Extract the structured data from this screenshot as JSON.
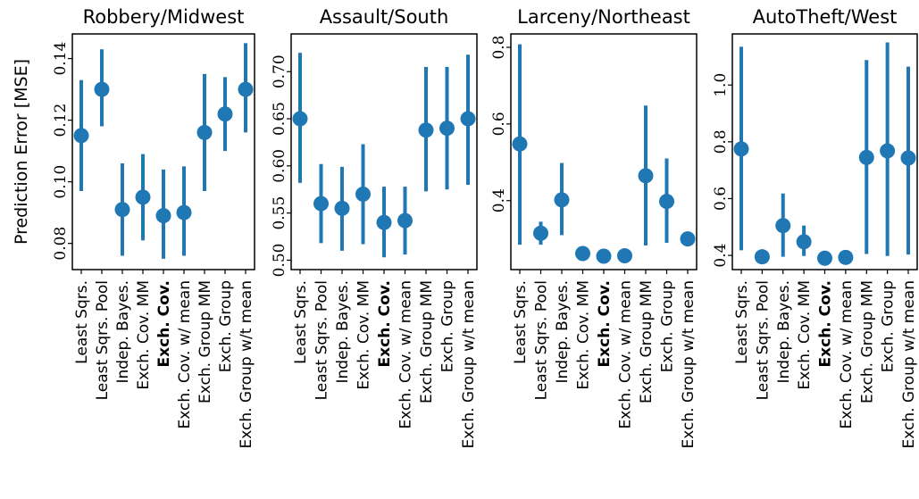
{
  "ylabel": "Prediction Error [MSE]",
  "colors": {
    "series": "#1f77b4"
  },
  "bold_category": "Exch. Cov.",
  "chart_data": [
    {
      "type": "scatter",
      "title": "Robbery/Midwest",
      "categories": [
        "Least Sqrs.",
        "Least Sqrs. Pool",
        "Indep. Bayes.",
        "Exch. Cov. MM",
        "Exch. Cov.",
        "Exch. Cov. w/ mean",
        "Exch. Group MM",
        "Exch. Group",
        "Exch. Group w/t mean"
      ],
      "values": [
        0.115,
        0.13,
        0.091,
        0.095,
        0.089,
        0.09,
        0.116,
        0.122,
        0.13
      ],
      "lower": [
        0.097,
        0.118,
        0.076,
        0.081,
        0.075,
        0.076,
        0.097,
        0.11,
        0.116
      ],
      "upper": [
        0.133,
        0.143,
        0.106,
        0.109,
        0.104,
        0.105,
        0.135,
        0.134,
        0.145
      ],
      "ylim": [
        0.0715,
        0.148
      ],
      "yticks": [
        0.08,
        0.1,
        0.12,
        0.14
      ],
      "ytick_labels": [
        "0.08",
        "0.10",
        "0.12",
        "0.14"
      ],
      "grid": false
    },
    {
      "type": "scatter",
      "title": "Assault/South",
      "categories": [
        "Least Sqrs.",
        "Least Sqrs. Pool",
        "Indep. Bayes.",
        "Exch. Cov. MM",
        "Exch. Cov.",
        "Exch. Cov. w/ mean",
        "Exch. Group MM",
        "Exch. Group",
        "Exch. Group w/t mean"
      ],
      "values": [
        0.65,
        0.56,
        0.555,
        0.57,
        0.54,
        0.542,
        0.638,
        0.64,
        0.65
      ],
      "lower": [
        0.582,
        0.518,
        0.51,
        0.517,
        0.503,
        0.506,
        0.573,
        0.575,
        0.58
      ],
      "upper": [
        0.72,
        0.602,
        0.599,
        0.623,
        0.578,
        0.578,
        0.705,
        0.705,
        0.718
      ],
      "ylim": [
        0.49,
        0.74
      ],
      "yticks": [
        0.5,
        0.55,
        0.6,
        0.65,
        0.7
      ],
      "ytick_labels": [
        "0.50",
        "0.55",
        "0.60",
        "0.65",
        "0.70"
      ],
      "grid": false
    },
    {
      "type": "scatter",
      "title": "Larceny/Northeast",
      "categories": [
        "Least Sqrs.",
        "Least Sqrs. Pool",
        "Indep. Bayes.",
        "Exch. Cov. MM",
        "Exch. Cov.",
        "Exch. Cov. w/ mean",
        "Exch. Group MM",
        "Exch. Group",
        "Exch. Group w/t mean"
      ],
      "values": [
        0.548,
        0.315,
        0.402,
        0.262,
        0.255,
        0.256,
        0.465,
        0.398,
        0.3
      ],
      "lower": [
        0.285,
        0.285,
        0.31,
        0.262,
        0.255,
        0.256,
        0.283,
        0.29,
        0.3
      ],
      "upper": [
        0.808,
        0.345,
        0.498,
        0.262,
        0.255,
        0.256,
        0.648,
        0.51,
        0.3
      ],
      "ylim": [
        0.22,
        0.835
      ],
      "yticks": [
        0.4,
        0.6,
        0.8
      ],
      "ytick_labels": [
        "0.4",
        "0.6",
        "0.8"
      ],
      "grid": false
    },
    {
      "type": "scatter",
      "title": "AutoTheft/West",
      "categories": [
        "Least Sqrs.",
        "Least Sqrs. Pool",
        "Indep. Bayes.",
        "Exch. Cov. MM",
        "Exch. Cov.",
        "Exch. Cov. w/ mean",
        "Exch. Group MM",
        "Exch. Group",
        "Exch. Group w/t mean"
      ],
      "values": [
        0.775,
        0.395,
        0.505,
        0.448,
        0.39,
        0.393,
        0.745,
        0.768,
        0.743
      ],
      "lower": [
        0.418,
        0.395,
        0.395,
        0.398,
        0.375,
        0.378,
        0.405,
        0.398,
        0.403
      ],
      "upper": [
        1.135,
        0.395,
        0.618,
        0.505,
        0.41,
        0.413,
        1.088,
        1.15,
        1.065
      ],
      "ylim": [
        0.35,
        1.18
      ],
      "yticks": [
        0.4,
        0.6,
        0.8,
        1.0
      ],
      "ytick_labels": [
        "0.4",
        "0.6",
        "0.8",
        "1.0"
      ],
      "grid": false
    }
  ]
}
